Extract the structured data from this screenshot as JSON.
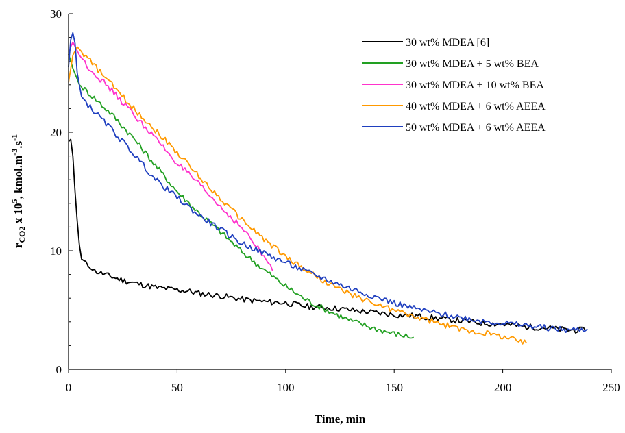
{
  "chart_data": {
    "type": "line",
    "title": "",
    "xlabel": "Time, min",
    "ylabel": {
      "main": "r",
      "main_sub": "CO2",
      "middle": " x 10",
      "middle_sup": "5",
      "unit": ", kmol.m",
      "unit_sup1": "-3",
      "unit_mid": ".s",
      "unit_sup2": "-1"
    },
    "xlim": [
      0,
      250
    ],
    "ylim": [
      0,
      30
    ],
    "xticks": [
      "0",
      "50",
      "100",
      "150",
      "200",
      "250"
    ],
    "yticks": [
      "0",
      "10",
      "20",
      "30"
    ],
    "grid": false,
    "legend_position": "top-right",
    "series": [
      {
        "name": "30 wt% MDEA [6]",
        "color": "#000000",
        "points": [
          [
            0,
            19.2
          ],
          [
            1,
            19.4
          ],
          [
            2,
            18
          ],
          [
            3,
            15
          ],
          [
            4,
            12.5
          ],
          [
            5,
            10.5
          ],
          [
            6,
            9.3
          ],
          [
            8,
            8.9
          ],
          [
            10,
            8.7
          ],
          [
            12,
            8.3
          ],
          [
            15,
            8.1
          ],
          [
            20,
            7.8
          ],
          [
            25,
            7.5
          ],
          [
            30,
            7.3
          ],
          [
            35,
            7.1
          ],
          [
            40,
            6.9
          ],
          [
            45,
            6.8
          ],
          [
            50,
            6.7
          ],
          [
            55,
            6.6
          ],
          [
            60,
            6.4
          ],
          [
            70,
            6.2
          ],
          [
            80,
            5.9
          ],
          [
            90,
            5.7
          ],
          [
            100,
            5.6
          ],
          [
            110,
            5.3
          ],
          [
            120,
            5.2
          ],
          [
            130,
            5.0
          ],
          [
            140,
            4.8
          ],
          [
            150,
            4.6
          ],
          [
            160,
            4.5
          ],
          [
            170,
            4.3
          ],
          [
            180,
            4.1
          ],
          [
            190,
            3.9
          ],
          [
            200,
            3.8
          ],
          [
            210,
            3.6
          ],
          [
            220,
            3.5
          ],
          [
            230,
            3.3
          ],
          [
            238,
            3.3
          ]
        ]
      },
      {
        "name": "30 wt% MDEA + 5 wt% BEA",
        "color": "#22a022",
        "points": [
          [
            0,
            26.6
          ],
          [
            2,
            25.4
          ],
          [
            5,
            24
          ],
          [
            10,
            23.2
          ],
          [
            20,
            21.5
          ],
          [
            30,
            19.5
          ],
          [
            40,
            17.2
          ],
          [
            50,
            15.0
          ],
          [
            60,
            13.2
          ],
          [
            70,
            11.6
          ],
          [
            80,
            9.9
          ],
          [
            90,
            8.4
          ],
          [
            100,
            7.0
          ],
          [
            110,
            5.8
          ],
          [
            120,
            4.9
          ],
          [
            130,
            4.1
          ],
          [
            140,
            3.5
          ],
          [
            150,
            3.0
          ],
          [
            159,
            2.7
          ]
        ]
      },
      {
        "name": "30 wt% MDEA + 10 wt% BEA",
        "color": "#ff33cc",
        "points": [
          [
            0,
            26.5
          ],
          [
            1,
            27.2
          ],
          [
            2,
            27.6
          ],
          [
            5,
            26.5
          ],
          [
            10,
            25.3
          ],
          [
            20,
            23.5
          ],
          [
            30,
            21.5
          ],
          [
            40,
            19.5
          ],
          [
            50,
            17.4
          ],
          [
            60,
            15.6
          ],
          [
            70,
            13.7
          ],
          [
            80,
            11.9
          ],
          [
            90,
            9.5
          ],
          [
            94,
            8.3
          ]
        ]
      },
      {
        "name": "40 wt% MDEA + 6 wt% AEEA",
        "color": "#ff9900",
        "points": [
          [
            0,
            24.2
          ],
          [
            2,
            26.5
          ],
          [
            4,
            27.2
          ],
          [
            6,
            26.8
          ],
          [
            10,
            26
          ],
          [
            20,
            24
          ],
          [
            30,
            22
          ],
          [
            40,
            20.2
          ],
          [
            50,
            18.3
          ],
          [
            60,
            16.3
          ],
          [
            70,
            14.4
          ],
          [
            80,
            12.6
          ],
          [
            90,
            11.0
          ],
          [
            100,
            9.5
          ],
          [
            110,
            8.3
          ],
          [
            120,
            7.2
          ],
          [
            130,
            6.3
          ],
          [
            140,
            5.6
          ],
          [
            150,
            5.0
          ],
          [
            160,
            4.4
          ],
          [
            170,
            3.9
          ],
          [
            180,
            3.4
          ],
          [
            190,
            3.1
          ],
          [
            200,
            2.8
          ],
          [
            211,
            2.2
          ]
        ]
      },
      {
        "name": "50 wt% MDEA + 6 wt% AEEA",
        "color": "#1f3fbf",
        "points": [
          [
            0,
            25.5
          ],
          [
            1,
            27.8
          ],
          [
            2,
            28.4
          ],
          [
            3,
            27.5
          ],
          [
            4,
            25
          ],
          [
            6,
            23
          ],
          [
            10,
            22.1
          ],
          [
            20,
            20.2
          ],
          [
            30,
            18.2
          ],
          [
            40,
            16
          ],
          [
            50,
            14.5
          ],
          [
            60,
            13.0
          ],
          [
            70,
            11.8
          ],
          [
            80,
            10.6
          ],
          [
            90,
            9.8
          ],
          [
            100,
            9.0
          ],
          [
            110,
            8.2
          ],
          [
            120,
            7.5
          ],
          [
            130,
            6.8
          ],
          [
            140,
            6.2
          ],
          [
            150,
            5.6
          ],
          [
            160,
            5.1
          ],
          [
            170,
            4.7
          ],
          [
            180,
            4.4
          ],
          [
            190,
            4.1
          ],
          [
            200,
            3.9
          ],
          [
            210,
            3.7
          ],
          [
            220,
            3.5
          ],
          [
            230,
            3.3
          ],
          [
            239,
            3.4
          ]
        ]
      }
    ]
  }
}
